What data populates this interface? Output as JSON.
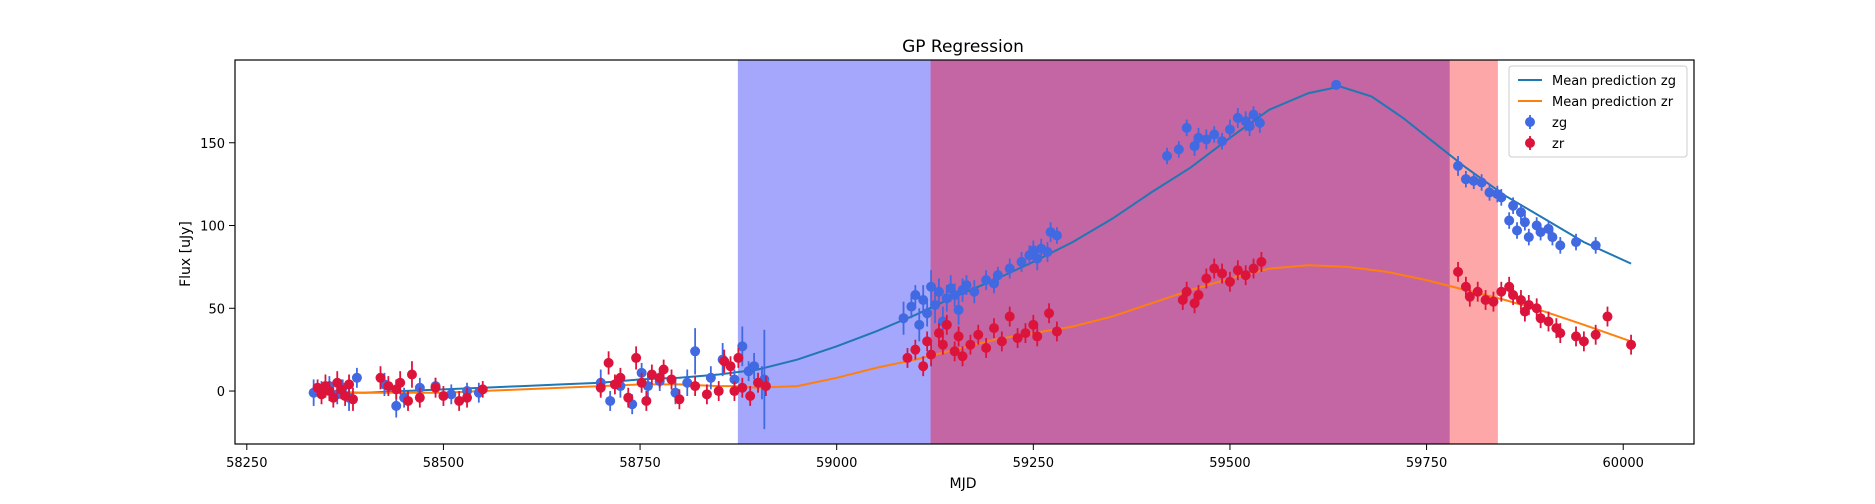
{
  "chart_data": {
    "type": "scatter",
    "title": "GP Regression",
    "xlabel": "MJD",
    "ylabel": "Flux [uJy]",
    "xlim": [
      58235,
      60090
    ],
    "ylim": [
      -32,
      200
    ],
    "xticks": [
      58250,
      58500,
      58750,
      59000,
      59250,
      59500,
      59750,
      60000
    ],
    "yticks": [
      0,
      50,
      100,
      150
    ],
    "grid": false,
    "legend_position": "top-right",
    "shaded_regions": [
      {
        "x0": 58875,
        "x1": 59120,
        "color": "#a5a7fc"
      },
      {
        "x0": 59120,
        "x1": 59780,
        "color": "#c466a3"
      },
      {
        "x0": 59780,
        "x1": 59840,
        "color": "#fea7a8"
      }
    ],
    "series": [
      {
        "name": "Mean prediction zg",
        "kind": "line",
        "color": "#1f77b4",
        "x": [
          58335,
          58400,
          58450,
          58500,
          58550,
          58600,
          58650,
          58700,
          58750,
          58800,
          58850,
          58900,
          58950,
          59000,
          59050,
          59100,
          59150,
          59200,
          59250,
          59300,
          59350,
          59400,
          59450,
          59500,
          59550,
          59600,
          59640,
          59680,
          59720,
          59760,
          59800,
          59850,
          59900,
          59950,
          60010
        ],
        "y": [
          -1,
          -1,
          0,
          1,
          2,
          3,
          4,
          5,
          7,
          8,
          10,
          13,
          19,
          27,
          36,
          46,
          57,
          67,
          78,
          90,
          104,
          120,
          135,
          153,
          170,
          180,
          184,
          178,
          165,
          150,
          135,
          118,
          104,
          90,
          77
        ]
      },
      {
        "name": "Mean prediction zr",
        "kind": "line",
        "color": "#ff7f0e",
        "x": [
          58335,
          58400,
          58450,
          58500,
          58550,
          58600,
          58650,
          58700,
          58750,
          58800,
          58850,
          58870,
          58900,
          58950,
          59000,
          59050,
          59100,
          59150,
          59200,
          59250,
          59300,
          59350,
          59400,
          59450,
          59500,
          59550,
          59600,
          59650,
          59700,
          59750,
          59800,
          59850,
          59900,
          59950,
          60010
        ],
        "y": [
          0,
          -1,
          -1,
          -1,
          0,
          1,
          2,
          3,
          4,
          4,
          3,
          3,
          2,
          3,
          8,
          14,
          19,
          25,
          31,
          35,
          39,
          45,
          53,
          61,
          68,
          74,
          76,
          75,
          72,
          67,
          61,
          55,
          48,
          40,
          30
        ]
      },
      {
        "name": "zg",
        "kind": "errorbar",
        "color": "#4169e1",
        "points": [
          [
            58335,
            -1,
            8
          ],
          [
            58345,
            1,
            5
          ],
          [
            58355,
            3,
            6
          ],
          [
            58365,
            -2,
            6
          ],
          [
            58372,
            2,
            5
          ],
          [
            58380,
            -4,
            8
          ],
          [
            58390,
            8,
            6
          ],
          [
            58425,
            4,
            7
          ],
          [
            58440,
            -9,
            7
          ],
          [
            58450,
            -4,
            6
          ],
          [
            58470,
            2,
            6
          ],
          [
            58490,
            3,
            5
          ],
          [
            58510,
            -2,
            6
          ],
          [
            58530,
            0,
            5
          ],
          [
            58545,
            -1,
            6
          ],
          [
            58700,
            5,
            8
          ],
          [
            58712,
            -6,
            6
          ],
          [
            58725,
            3,
            7
          ],
          [
            58740,
            -8,
            6
          ],
          [
            58752,
            11,
            6
          ],
          [
            58760,
            3,
            7
          ],
          [
            58775,
            6,
            6
          ],
          [
            58795,
            -1,
            7
          ],
          [
            58810,
            5,
            8
          ],
          [
            58820,
            24,
            14
          ],
          [
            58840,
            8,
            7
          ],
          [
            58855,
            19,
            10
          ],
          [
            58870,
            7,
            6
          ],
          [
            58880,
            27,
            12
          ],
          [
            58888,
            12,
            6
          ],
          [
            58895,
            15,
            8
          ],
          [
            58905,
            5,
            10
          ],
          [
            58908,
            7,
            30
          ],
          [
            59085,
            44,
            10
          ],
          [
            59095,
            51,
            7
          ],
          [
            59100,
            58,
            6
          ],
          [
            59105,
            40,
            10
          ],
          [
            59110,
            55,
            9
          ],
          [
            59115,
            47,
            8
          ],
          [
            59120,
            63,
            10
          ],
          [
            59125,
            52,
            11
          ],
          [
            59130,
            60,
            8
          ],
          [
            59135,
            42,
            9
          ],
          [
            59140,
            56,
            8
          ],
          [
            59145,
            62,
            8
          ],
          [
            59150,
            58,
            7
          ],
          [
            59155,
            49,
            9
          ],
          [
            59160,
            61,
            7
          ],
          [
            59165,
            64,
            6
          ],
          [
            59175,
            60,
            7
          ],
          [
            59190,
            67,
            6
          ],
          [
            59200,
            65,
            6
          ],
          [
            59205,
            70,
            5
          ],
          [
            59220,
            74,
            6
          ],
          [
            59235,
            78,
            6
          ],
          [
            59245,
            82,
            6
          ],
          [
            59250,
            85,
            6
          ],
          [
            59255,
            80,
            7
          ],
          [
            59260,
            86,
            6
          ],
          [
            59268,
            84,
            6
          ],
          [
            59272,
            96,
            6
          ],
          [
            59280,
            94,
            5
          ],
          [
            59420,
            142,
            5
          ],
          [
            59435,
            146,
            5
          ],
          [
            59445,
            159,
            5
          ],
          [
            59455,
            148,
            6
          ],
          [
            59460,
            153,
            6
          ],
          [
            59470,
            152,
            6
          ],
          [
            59480,
            155,
            5
          ],
          [
            59490,
            151,
            5
          ],
          [
            59500,
            158,
            6
          ],
          [
            59510,
            165,
            6
          ],
          [
            59520,
            163,
            6
          ],
          [
            59525,
            160,
            6
          ],
          [
            59530,
            167,
            5
          ],
          [
            59538,
            162,
            6
          ],
          [
            59635,
            185,
            3
          ],
          [
            59790,
            136,
            6
          ],
          [
            59800,
            128,
            5
          ],
          [
            59810,
            127,
            5
          ],
          [
            59820,
            126,
            5
          ],
          [
            59830,
            120,
            5
          ],
          [
            59840,
            119,
            5
          ],
          [
            59845,
            117,
            5
          ],
          [
            59855,
            103,
            5
          ],
          [
            59860,
            112,
            5
          ],
          [
            59865,
            97,
            5
          ],
          [
            59870,
            108,
            5
          ],
          [
            59875,
            102,
            5
          ],
          [
            59880,
            93,
            5
          ],
          [
            59890,
            100,
            5
          ],
          [
            59895,
            96,
            5
          ],
          [
            59905,
            98,
            5
          ],
          [
            59910,
            93,
            5
          ],
          [
            59920,
            88,
            5
          ],
          [
            59940,
            90,
            5
          ],
          [
            59965,
            88,
            5
          ]
        ]
      },
      {
        "name": "zr",
        "kind": "errorbar",
        "color": "#dc143c",
        "points": [
          [
            58340,
            2,
            5
          ],
          [
            58345,
            -2,
            6
          ],
          [
            58350,
            3,
            7
          ],
          [
            58355,
            0,
            6
          ],
          [
            58360,
            -4,
            6
          ],
          [
            58365,
            5,
            7
          ],
          [
            58370,
            1,
            6
          ],
          [
            58375,
            -3,
            6
          ],
          [
            58380,
            4,
            6
          ],
          [
            58385,
            -5,
            7
          ],
          [
            58420,
            8,
            7
          ],
          [
            58430,
            3,
            6
          ],
          [
            58440,
            1,
            6
          ],
          [
            58445,
            5,
            7
          ],
          [
            58455,
            -6,
            6
          ],
          [
            58460,
            10,
            8
          ],
          [
            58470,
            -4,
            6
          ],
          [
            58490,
            2,
            6
          ],
          [
            58500,
            -3,
            6
          ],
          [
            58520,
            -6,
            6
          ],
          [
            58530,
            -4,
            6
          ],
          [
            58550,
            1,
            5
          ],
          [
            58700,
            2,
            6
          ],
          [
            58710,
            17,
            7
          ],
          [
            58718,
            4,
            6
          ],
          [
            58725,
            8,
            6
          ],
          [
            58735,
            -4,
            6
          ],
          [
            58745,
            20,
            7
          ],
          [
            58752,
            5,
            6
          ],
          [
            58758,
            -6,
            6
          ],
          [
            58765,
            10,
            6
          ],
          [
            58775,
            8,
            6
          ],
          [
            58780,
            13,
            6
          ],
          [
            58790,
            7,
            6
          ],
          [
            58800,
            -5,
            6
          ],
          [
            58820,
            3,
            6
          ],
          [
            58835,
            -2,
            6
          ],
          [
            58850,
            0,
            6
          ],
          [
            58857,
            18,
            7
          ],
          [
            58865,
            15,
            6
          ],
          [
            58870,
            0,
            6
          ],
          [
            58875,
            20,
            6
          ],
          [
            58880,
            2,
            6
          ],
          [
            58890,
            -3,
            6
          ],
          [
            58900,
            5,
            6
          ],
          [
            58910,
            3,
            6
          ],
          [
            59090,
            20,
            6
          ],
          [
            59100,
            25,
            6
          ],
          [
            59110,
            15,
            6
          ],
          [
            59115,
            30,
            6
          ],
          [
            59120,
            22,
            7
          ],
          [
            59130,
            35,
            6
          ],
          [
            59135,
            28,
            6
          ],
          [
            59140,
            40,
            6
          ],
          [
            59150,
            24,
            6
          ],
          [
            59155,
            33,
            6
          ],
          [
            59160,
            21,
            6
          ],
          [
            59170,
            28,
            6
          ],
          [
            59180,
            34,
            6
          ],
          [
            59190,
            26,
            6
          ],
          [
            59200,
            38,
            6
          ],
          [
            59210,
            30,
            6
          ],
          [
            59220,
            45,
            6
          ],
          [
            59230,
            32,
            6
          ],
          [
            59240,
            35,
            6
          ],
          [
            59250,
            40,
            6
          ],
          [
            59255,
            33,
            6
          ],
          [
            59270,
            47,
            6
          ],
          [
            59280,
            36,
            6
          ],
          [
            59440,
            55,
            6
          ],
          [
            59445,
            60,
            6
          ],
          [
            59455,
            53,
            6
          ],
          [
            59460,
            58,
            6
          ],
          [
            59470,
            68,
            6
          ],
          [
            59480,
            74,
            6
          ],
          [
            59490,
            71,
            6
          ],
          [
            59500,
            66,
            6
          ],
          [
            59510,
            73,
            6
          ],
          [
            59520,
            70,
            6
          ],
          [
            59530,
            74,
            6
          ],
          [
            59540,
            78,
            6
          ],
          [
            59790,
            72,
            6
          ],
          [
            59800,
            63,
            6
          ],
          [
            59805,
            57,
            6
          ],
          [
            59815,
            60,
            6
          ],
          [
            59825,
            55,
            6
          ],
          [
            59835,
            54,
            6
          ],
          [
            59845,
            60,
            6
          ],
          [
            59855,
            63,
            6
          ],
          [
            59860,
            58,
            6
          ],
          [
            59870,
            55,
            6
          ],
          [
            59875,
            48,
            6
          ],
          [
            59880,
            52,
            6
          ],
          [
            59890,
            50,
            6
          ],
          [
            59895,
            44,
            6
          ],
          [
            59905,
            42,
            6
          ],
          [
            59915,
            38,
            6
          ],
          [
            59920,
            35,
            6
          ],
          [
            59940,
            33,
            6
          ],
          [
            59950,
            30,
            6
          ],
          [
            59965,
            34,
            6
          ],
          [
            59980,
            45,
            6
          ],
          [
            60010,
            28,
            6
          ]
        ]
      }
    ]
  }
}
